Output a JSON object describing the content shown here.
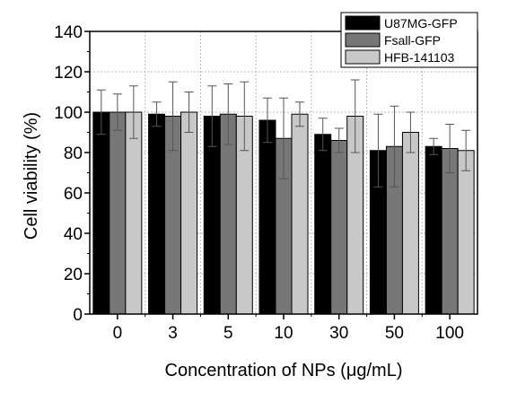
{
  "chart_data": {
    "type": "bar",
    "title": "",
    "xlabel": "Concentration of NPs (μg/mL)",
    "ylabel": "Cell viability (%)",
    "categories": [
      "0",
      "3",
      "5",
      "10",
      "30",
      "50",
      "100"
    ],
    "ylim": [
      0,
      140
    ],
    "yticks": [
      "0",
      "20",
      "40",
      "60",
      "80",
      "100",
      "120",
      "140"
    ],
    "grid": true,
    "legend_position": "top-right",
    "series": [
      {
        "name": "U87MG-GFP",
        "color": "#000000",
        "values": [
          100,
          99,
          98,
          96,
          89,
          81,
          83
        ],
        "errors": [
          11,
          6,
          15,
          11,
          8,
          18,
          4
        ]
      },
      {
        "name": "Fsall-GFP",
        "color": "#777777",
        "values": [
          100,
          98,
          99,
          87,
          86,
          83,
          82
        ],
        "errors": [
          9,
          17,
          15,
          20,
          6,
          20,
          12
        ]
      },
      {
        "name": "HFB-141103",
        "color": "#c8c8c8",
        "values": [
          100,
          100,
          98,
          99,
          98,
          90,
          81
        ],
        "errors": [
          13,
          10,
          17,
          6,
          18,
          10,
          10
        ]
      }
    ]
  }
}
